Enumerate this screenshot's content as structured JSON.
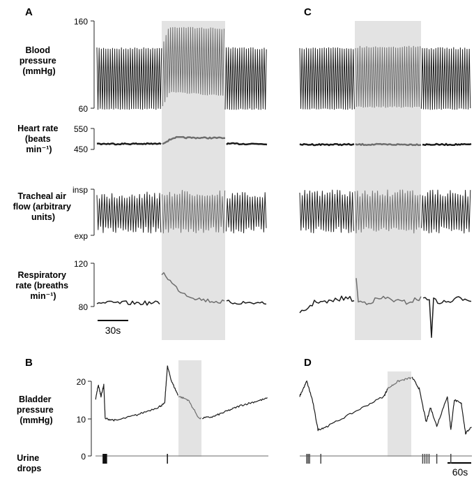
{
  "panels": {
    "A": "A",
    "B": "B",
    "C": "C",
    "D": "D"
  },
  "row_labels": {
    "bp": [
      "Blood",
      "pressure",
      "(mmHg)"
    ],
    "hr": [
      "Heart rate",
      "(beats",
      "min⁻¹)"
    ],
    "air": [
      "Tracheal air",
      "flow (arbitrary",
      "units)"
    ],
    "rr": [
      "Respiratory",
      "rate (breaths",
      "min⁻¹)"
    ],
    "bladder": [
      "Bladder",
      "pressure",
      "(mmHg)"
    ],
    "urine": [
      "Urine",
      "drops"
    ]
  },
  "ticks": {
    "bp_top": "160",
    "bp_bottom": "60",
    "hr_top": "550",
    "hr_bottom": "450",
    "air_top": "insp",
    "air_bottom": "exp",
    "rr_top": "120",
    "rr_bottom": "80",
    "bladder_top": "20",
    "bladder_mid": "10",
    "bladder_zero": "0"
  },
  "scale_bars": {
    "left": "30s",
    "right": "60s"
  },
  "colors": {
    "trace": "#1a1a1a",
    "stim_trace": "#6e6e6e",
    "shade": "#e3e3e3",
    "axis": "#222222"
  },
  "chart_data": [
    {
      "type": "line",
      "panel": "A",
      "series": [
        {
          "name": "Blood pressure",
          "baseline_range": [
            66,
            123
          ],
          "stim_peak": 152,
          "unit": "mmHg",
          "ylim": [
            60,
            160
          ]
        },
        {
          "name": "Heart rate",
          "baseline": 470,
          "stim_peak": 500,
          "unit": "beats min-1",
          "ylim": [
            450,
            550
          ]
        },
        {
          "name": "Tracheal air flow",
          "levels": [
            "exp",
            "insp"
          ]
        },
        {
          "name": "Respiratory rate",
          "baseline": 84,
          "stim_peak": 112,
          "unit": "breaths min-1",
          "ylim": [
            80,
            120
          ]
        }
      ],
      "scale_bar": "30s"
    },
    {
      "type": "line",
      "panel": "C",
      "series": [
        {
          "name": "Blood pressure",
          "baseline_range": [
            66,
            128
          ],
          "ylim": [
            60,
            160
          ]
        },
        {
          "name": "Heart rate",
          "baseline": 470,
          "ylim": [
            450,
            550
          ]
        },
        {
          "name": "Tracheal air flow",
          "levels": [
            "exp",
            "insp"
          ]
        },
        {
          "name": "Respiratory rate",
          "baseline": 86,
          "ylim": [
            80,
            120
          ]
        }
      ]
    },
    {
      "type": "line",
      "panel": "B",
      "series": [
        {
          "name": "Bladder pressure",
          "x": [
            0,
            4,
            8,
            12,
            14,
            30,
            60,
            90,
            100,
            104,
            110,
            120,
            134,
            150,
            170,
            190,
            210,
            230,
            250
          ],
          "y": [
            15,
            19,
            16,
            19,
            10,
            9.5,
            11,
            13,
            14,
            24,
            20,
            16,
            15,
            10,
            10.5,
            12,
            13.5,
            14.5,
            15.5
          ],
          "unit": "mmHg",
          "ylim": [
            0,
            25
          ]
        },
        {
          "name": "Urine drops",
          "x": [
            11,
            12,
            13,
            14,
            15,
            16,
            104
          ]
        }
      ]
    },
    {
      "type": "line",
      "panel": "D",
      "series": [
        {
          "name": "Bladder pressure",
          "x": [
            0,
            10,
            18,
            26,
            40,
            80,
            120,
            125,
            140,
            160,
            170,
            180,
            186,
            195,
            210,
            215,
            220,
            230,
            236,
            245
          ],
          "y": [
            16,
            20,
            15,
            7,
            8,
            12,
            16,
            18,
            20,
            21,
            18,
            9,
            13,
            8,
            16,
            7,
            15,
            14,
            6,
            8
          ],
          "unit": "mmHg",
          "ylim": [
            0,
            25
          ]
        },
        {
          "name": "Urine drops",
          "x": [
            10,
            12,
            14,
            30,
            175,
            178,
            181,
            184,
            195,
            215
          ]
        }
      ],
      "scale_bar": "60s"
    }
  ]
}
